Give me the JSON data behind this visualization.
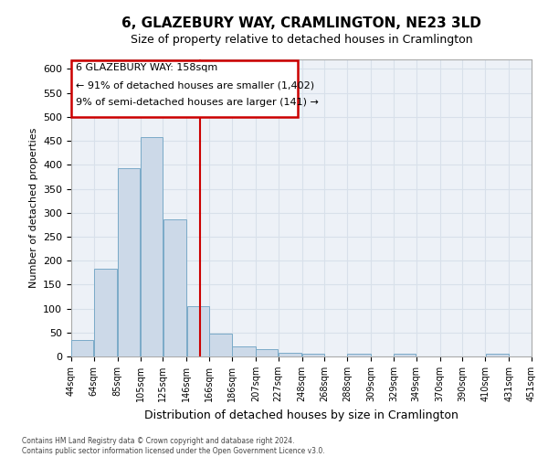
{
  "title1": "6, GLAZEBURY WAY, CRAMLINGTON, NE23 3LD",
  "title2": "Size of property relative to detached houses in Cramlington",
  "xlabel": "Distribution of detached houses by size in Cramlington",
  "ylabel": "Number of detached properties",
  "footer1": "Contains HM Land Registry data © Crown copyright and database right 2024.",
  "footer2": "Contains public sector information licensed under the Open Government Licence v3.0.",
  "bar_color": "#ccd9e8",
  "bar_edge_color": "#7aaac8",
  "bar_left_edges": [
    44,
    64,
    85,
    105,
    125,
    146,
    166,
    186,
    207,
    227,
    248,
    268,
    288,
    309,
    329,
    349,
    370,
    390,
    410,
    431
  ],
  "bar_widths": [
    20,
    21,
    20,
    20,
    21,
    20,
    20,
    21,
    20,
    21,
    20,
    20,
    21,
    20,
    20,
    21,
    20,
    20,
    21,
    20
  ],
  "bar_heights": [
    35,
    183,
    393,
    458,
    287,
    104,
    48,
    21,
    16,
    8,
    5,
    0,
    5,
    0,
    5,
    0,
    0,
    0,
    5,
    0
  ],
  "tick_labels": [
    "44sqm",
    "64sqm",
    "85sqm",
    "105sqm",
    "125sqm",
    "146sqm",
    "166sqm",
    "186sqm",
    "207sqm",
    "227sqm",
    "248sqm",
    "268sqm",
    "288sqm",
    "309sqm",
    "329sqm",
    "349sqm",
    "370sqm",
    "390sqm",
    "410sqm",
    "431sqm",
    "451sqm"
  ],
  "property_line_x": 158,
  "ylim": [
    0,
    620
  ],
  "yticks": [
    0,
    50,
    100,
    150,
    200,
    250,
    300,
    350,
    400,
    450,
    500,
    550,
    600
  ],
  "annotation_text1": "6 GLAZEBURY WAY: 158sqm",
  "annotation_text2": "← 91% of detached houses are smaller (1,402)",
  "annotation_text3": "9% of semi-detached houses are larger (141) →",
  "red_color": "#cc0000",
  "white": "#ffffff",
  "grid_color": "#d8e0ea",
  "bg_color": "#edf1f7",
  "title1_fontsize": 11,
  "title2_fontsize": 9,
  "ylabel_fontsize": 8,
  "xlabel_fontsize": 9,
  "tick_fontsize": 7,
  "ytick_fontsize": 8,
  "footer_fontsize": 5.5,
  "annot_fontsize": 8
}
